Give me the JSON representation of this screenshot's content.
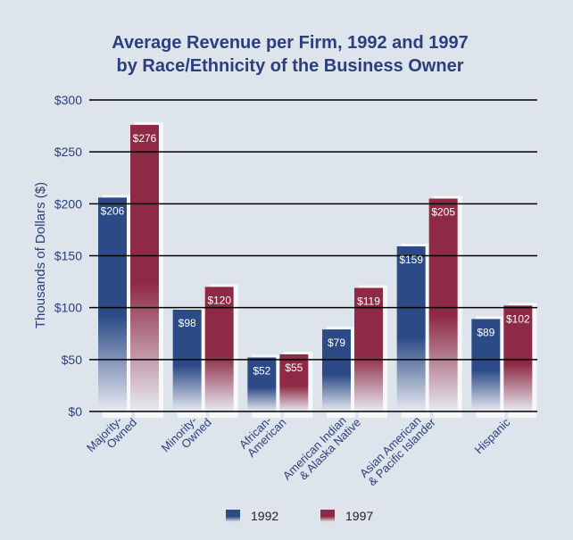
{
  "chart_data": {
    "type": "bar",
    "title": "Average Revenue per Firm, 1992 and 1997",
    "subtitle": "by Race/Ethnicity of the Business Owner",
    "y_label": "Thousands of Dollars ($)",
    "categories": [
      "Majority-\nOwned",
      "Minority-\nOwned",
      "African-\nAmerican",
      "American Indian\n& Alaska Native",
      "Asian American\n& Pacific Islander",
      "Hispanic"
    ],
    "series": [
      {
        "name": "1992",
        "color": "#2b4a86",
        "values": [
          206,
          98,
          52,
          79,
          159,
          89
        ],
        "value_labels": [
          "$206",
          "$98",
          "$52",
          "$79",
          "$159",
          "$89"
        ]
      },
      {
        "name": "1997",
        "color": "#8e2a45",
        "values": [
          276,
          120,
          55,
          119,
          205,
          102
        ],
        "value_labels": [
          "$276",
          "$120",
          "$55",
          "$119",
          "$205",
          "$102"
        ]
      }
    ],
    "ylim": [
      0,
      300
    ],
    "yticks": [
      {
        "value": 0,
        "label": "$0"
      },
      {
        "value": 50,
        "label": "$50"
      },
      {
        "value": 100,
        "label": "$100"
      },
      {
        "value": 150,
        "label": "$150"
      },
      {
        "value": 200,
        "label": "$200"
      },
      {
        "value": 250,
        "label": "$250"
      },
      {
        "value": 300,
        "label": "$300"
      }
    ],
    "grid": true,
    "legend": "bottom"
  }
}
